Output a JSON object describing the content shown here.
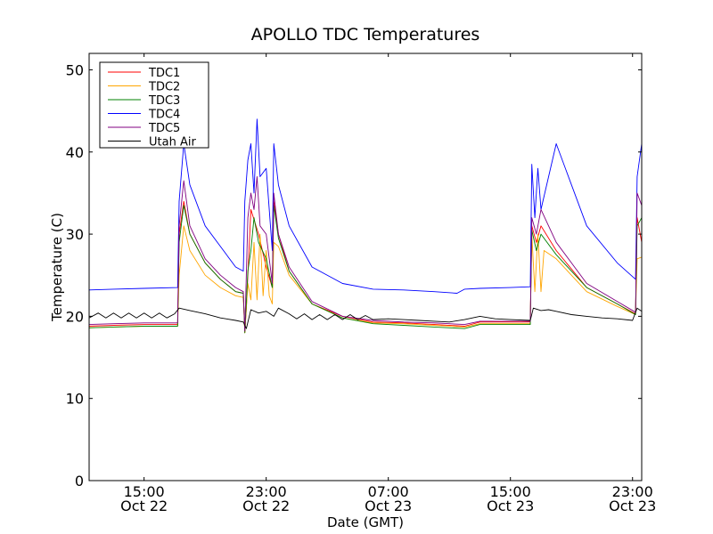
{
  "chart_data": {
    "type": "line",
    "title": "APOLLO TDC Temperatures",
    "xlabel": "Date (GMT)",
    "ylabel": "Temperature (C)",
    "xlim_hours": [
      11.4,
      47.6
    ],
    "ylim": [
      0,
      52
    ],
    "yticks": [
      0,
      10,
      20,
      30,
      40,
      50
    ],
    "xticks": [
      {
        "hour": 15,
        "label": "15:00",
        "sublabel": "Oct 22"
      },
      {
        "hour": 23,
        "label": "23:00",
        "sublabel": "Oct 22"
      },
      {
        "hour": 31,
        "label": "07:00",
        "sublabel": "Oct 23"
      },
      {
        "hour": 39,
        "label": "15:00",
        "sublabel": "Oct 23"
      },
      {
        "hour": 47,
        "label": "23:00",
        "sublabel": "Oct 23"
      }
    ],
    "legend_position": "top-left",
    "series": [
      {
        "name": "TDC1",
        "color": "#ff0000",
        "x": [
          11.4,
          13,
          15,
          17.2,
          17.3,
          17.6,
          18,
          19,
          20,
          21,
          21.5,
          21.6,
          21.7,
          22,
          22.5,
          23,
          23.4,
          23.5,
          23.8,
          24.5,
          26,
          28,
          30,
          32,
          34,
          36,
          37,
          39,
          40.3,
          40.4,
          40.7,
          41,
          42,
          44,
          46,
          47.2,
          47.3,
          47.6
        ],
        "y": [
          18.8,
          18.9,
          19,
          19,
          30,
          34,
          30,
          26.5,
          24.5,
          23,
          22.8,
          18,
          21,
          33,
          30,
          26,
          23.5,
          34,
          30,
          25.5,
          21.5,
          20,
          19.3,
          19.2,
          19,
          18.8,
          19.3,
          19.3,
          19.3,
          31,
          29,
          31,
          28,
          23.5,
          21.5,
          20.3,
          32,
          29
        ]
      },
      {
        "name": "TDC2",
        "color": "#ffa500",
        "x": [
          11.4,
          13,
          15,
          17.2,
          17.3,
          17.6,
          18,
          19,
          20,
          21,
          21.5,
          21.6,
          21.8,
          22,
          22.2,
          22.4,
          22.6,
          22.8,
          23,
          23.2,
          23.4,
          23.5,
          23.8,
          24.5,
          26,
          28,
          30,
          32,
          34,
          36,
          37,
          39,
          40.3,
          40.4,
          40.6,
          40.8,
          41,
          41.2,
          42,
          44,
          46,
          47.2,
          47.3,
          47.6
        ],
        "y": [
          18.6,
          18.7,
          18.8,
          18.8,
          25,
          31,
          28,
          25,
          23.5,
          22.5,
          22.3,
          18,
          24,
          22,
          29,
          22,
          30,
          22.5,
          28,
          22.5,
          21.5,
          29,
          28.5,
          25,
          21.5,
          19.8,
          19.2,
          19.1,
          18.9,
          18.7,
          19.1,
          19.1,
          19.1,
          30,
          23,
          30,
          23,
          28,
          27,
          23,
          21.2,
          20.2,
          27,
          27.2
        ]
      },
      {
        "name": "TDC3",
        "color": "#008000",
        "x": [
          11.4,
          13,
          15,
          17.2,
          17.3,
          17.6,
          18,
          19,
          20,
          21,
          21.5,
          21.6,
          21.8,
          22,
          22.2,
          22.5,
          23,
          23.4,
          23.5,
          23.8,
          24.5,
          26,
          28,
          30,
          32,
          34,
          36,
          37,
          39,
          40.3,
          40.4,
          40.7,
          41,
          42,
          44,
          46,
          47.2,
          47.3,
          47.6
        ],
        "y": [
          18.6,
          18.7,
          18.8,
          18.8,
          29,
          33.5,
          30,
          26.5,
          24.5,
          23,
          22.8,
          18,
          25.5,
          28,
          32,
          29,
          27,
          23.5,
          33.5,
          29.5,
          25.5,
          21.5,
          19.8,
          19.1,
          18.9,
          18.7,
          18.5,
          19,
          19,
          19,
          30.5,
          28,
          30,
          27.5,
          23.5,
          21.5,
          20.2,
          31,
          32
        ]
      },
      {
        "name": "TDC4",
        "color": "#0000ff",
        "x": [
          11.4,
          13,
          15,
          17.2,
          17.3,
          17.6,
          18,
          19,
          20,
          21,
          21.5,
          21.6,
          21.8,
          22,
          22.2,
          22.4,
          22.6,
          23,
          23.4,
          23.5,
          23.8,
          24.5,
          26,
          28,
          30,
          32,
          34,
          35.5,
          36,
          37,
          39,
          40.3,
          40.4,
          40.6,
          40.8,
          41,
          42,
          44,
          46,
          47.2,
          47.3,
          47.6
        ],
        "y": [
          23.2,
          23.3,
          23.4,
          23.5,
          34,
          41,
          36,
          31,
          28.5,
          26,
          25.5,
          34,
          39,
          41,
          35,
          44,
          37,
          38,
          28,
          41,
          36,
          31,
          26,
          24,
          23.3,
          23.2,
          23,
          22.8,
          23.3,
          23.4,
          23.5,
          23.6,
          38.5,
          32,
          38,
          33,
          41,
          31,
          26.5,
          24.5,
          37,
          41
        ]
      },
      {
        "name": "TDC5",
        "color": "#800080",
        "x": [
          11.4,
          13,
          15,
          17.2,
          17.3,
          17.6,
          18,
          19,
          20,
          21,
          21.5,
          21.6,
          21.8,
          22,
          22.2,
          22.4,
          22.6,
          23,
          23.4,
          23.5,
          23.8,
          24.5,
          26,
          28,
          30,
          32,
          34,
          36,
          37,
          39,
          40.3,
          40.4,
          40.7,
          41,
          42,
          44,
          46,
          47.2,
          47.3,
          47.6
        ],
        "y": [
          19,
          19.1,
          19.2,
          19.2,
          31,
          36.5,
          31,
          27,
          25,
          23.5,
          23,
          18.2,
          32,
          35,
          33,
          37,
          31,
          30,
          24,
          35,
          30,
          26,
          21.8,
          20,
          19.5,
          19.3,
          19.2,
          19,
          19.4,
          19.4,
          19.4,
          32,
          30,
          33,
          29,
          24,
          21.8,
          20.5,
          35,
          33.5
        ]
      },
      {
        "name": "Utah Air",
        "color": "#000000",
        "x": [
          11.4,
          12,
          12.5,
          13,
          13.5,
          14,
          14.5,
          15,
          15.5,
          16,
          16.5,
          17,
          17.3,
          18,
          19,
          20,
          21,
          21.5,
          21.7,
          22,
          22.5,
          23,
          23.5,
          23.8,
          24.5,
          25,
          25.5,
          26,
          26.5,
          27,
          27.5,
          28,
          28.5,
          29,
          29.5,
          30,
          31,
          32,
          33,
          34,
          35,
          36,
          37,
          38,
          39,
          40.3,
          40.5,
          41,
          41.5,
          42,
          43,
          44,
          45,
          46,
          47,
          47.3,
          47.6
        ],
        "y": [
          19.8,
          20.4,
          19.8,
          20.4,
          19.8,
          20.4,
          19.8,
          20.4,
          19.8,
          20.4,
          19.8,
          20.3,
          21,
          20.7,
          20.3,
          19.8,
          19.5,
          19.3,
          18.5,
          20.8,
          20.4,
          20.6,
          20,
          21,
          20.3,
          19.7,
          20.3,
          19.6,
          20.2,
          19.6,
          20.2,
          19.6,
          20.2,
          19.6,
          20.1,
          19.6,
          19.7,
          19.6,
          19.5,
          19.4,
          19.3,
          19.6,
          20,
          19.7,
          19.6,
          19.5,
          21,
          20.7,
          20.8,
          20.6,
          20.2,
          20,
          19.8,
          19.7,
          19.5,
          21,
          20.6
        ]
      }
    ]
  }
}
